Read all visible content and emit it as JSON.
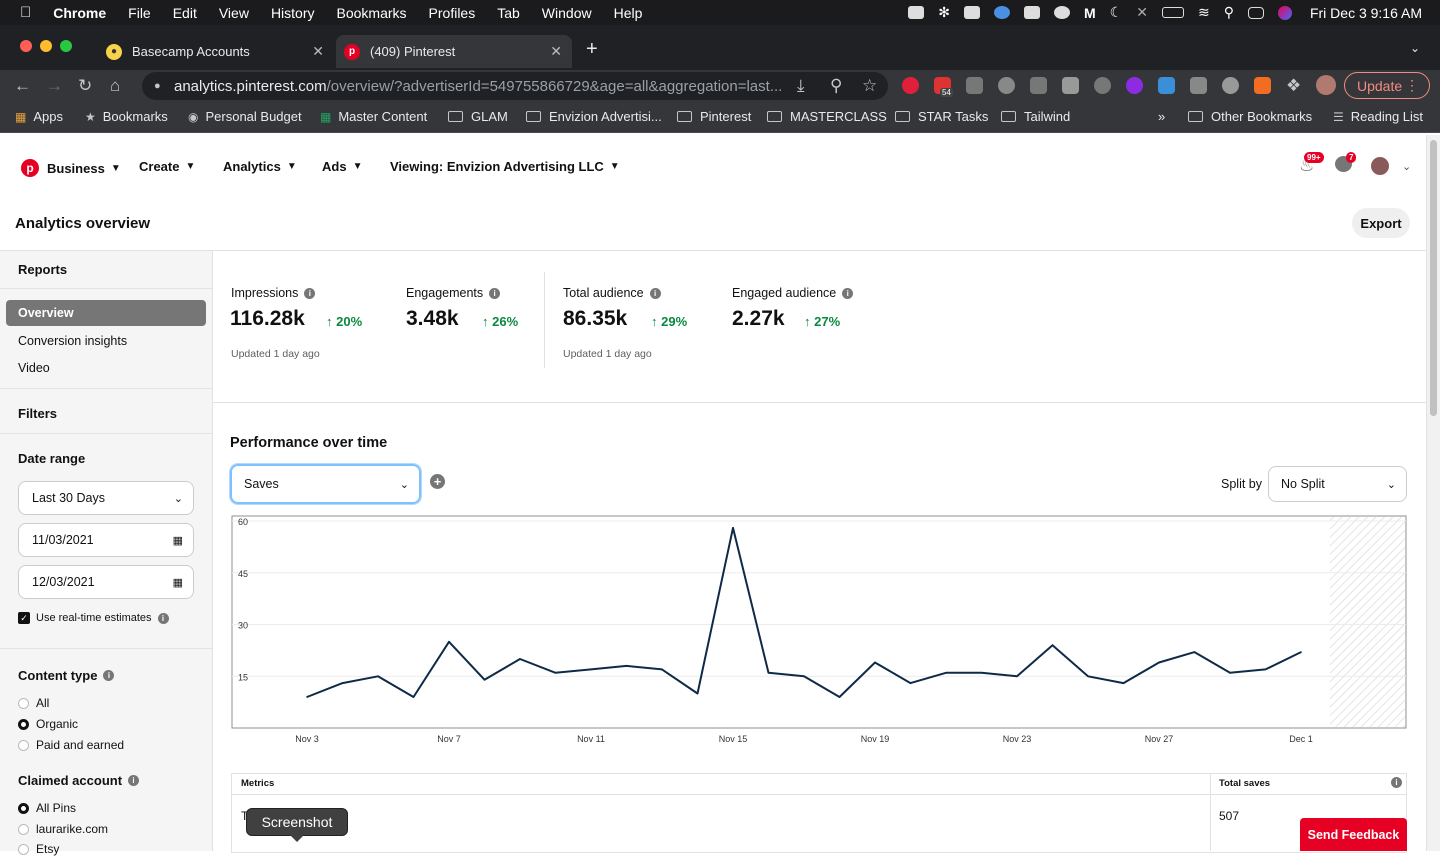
{
  "mac_menu": {
    "app": "Chrome",
    "items": [
      "File",
      "Edit",
      "View",
      "History",
      "Bookmarks",
      "Profiles",
      "Tab",
      "Window",
      "Help"
    ],
    "clock": "Fri Dec 3  9:16 AM"
  },
  "tabs": [
    {
      "title": "Basecamp Accounts",
      "active": false
    },
    {
      "title": "(409) Pinterest",
      "active": true
    }
  ],
  "address_bar": {
    "host": "analytics.pinterest.com",
    "path": "/overview/?advertiserId=549755866729&age=all&aggregation=last..."
  },
  "update_button": "Update",
  "extension_badge": "54",
  "bookmarks": [
    "Apps",
    "Bookmarks",
    "Personal Budget",
    "Master Content",
    "GLAM",
    "Envizion Advertisi...",
    "Pinterest",
    "MASTERCLASS",
    "STAR Tasks",
    "Tailwind"
  ],
  "bookmarks_overflow": "»",
  "other_bookmarks": "Other Bookmarks",
  "reading_list": "Reading List",
  "pinterest_nav": {
    "business": "Business",
    "create": "Create",
    "analytics": "Analytics",
    "ads": "Ads",
    "viewing": "Viewing: Envizion Advertising LLC",
    "notifications_badge": "99+",
    "messages_badge": "7"
  },
  "page": {
    "title": "Analytics overview",
    "export": "Export"
  },
  "sidebar": {
    "reports_heading": "Reports",
    "reports": [
      "Overview",
      "Conversion insights",
      "Video"
    ],
    "filters_heading": "Filters",
    "date_range_heading": "Date range",
    "date_range_value": "Last 30 Days",
    "start_date": "11/03/2021",
    "end_date": "12/03/2021",
    "realtime_label": "Use real-time estimates",
    "content_type_heading": "Content type",
    "content_types": [
      "All",
      "Organic",
      "Paid and earned"
    ],
    "content_type_selected": "Organic",
    "claimed_heading": "Claimed account",
    "claimed_accounts": [
      "All Pins",
      "laurarike.com",
      "Etsy"
    ],
    "claimed_selected": "All Pins"
  },
  "metrics": [
    {
      "label": "Impressions",
      "value": "116.28k",
      "change": "20%"
    },
    {
      "label": "Engagements",
      "value": "3.48k",
      "change": "26%"
    },
    {
      "label": "Total audience",
      "value": "86.35k",
      "change": "29%"
    },
    {
      "label": "Engaged audience",
      "value": "2.27k",
      "change": "27%"
    }
  ],
  "updated_text": "Updated 1 day ago",
  "performance": {
    "title": "Performance over time",
    "metric_select": "Saves",
    "split_label": "Split by",
    "split_value": "No Split"
  },
  "chart_data": {
    "type": "line",
    "x": [
      "Nov 3",
      "Nov 4",
      "Nov 5",
      "Nov 6",
      "Nov 7",
      "Nov 8",
      "Nov 9",
      "Nov 10",
      "Nov 11",
      "Nov 12",
      "Nov 13",
      "Nov 14",
      "Nov 15",
      "Nov 16",
      "Nov 17",
      "Nov 18",
      "Nov 19",
      "Nov 20",
      "Nov 21",
      "Nov 22",
      "Nov 23",
      "Nov 24",
      "Nov 25",
      "Nov 26",
      "Nov 27",
      "Nov 28",
      "Nov 29",
      "Nov 30",
      "Dec 1"
    ],
    "tick_labels": [
      "Nov 3",
      "Nov 7",
      "Nov 11",
      "Nov 15",
      "Nov 19",
      "Nov 23",
      "Nov 27",
      "Dec 1"
    ],
    "series": [
      {
        "values": [
          9,
          13,
          15,
          9,
          25,
          14,
          20,
          16,
          17,
          18,
          17,
          10,
          58,
          16,
          15,
          9,
          19,
          13,
          16,
          16,
          15,
          24,
          15,
          13,
          19,
          22,
          16,
          17,
          22
        ]
      }
    ],
    "yticks": [
      15,
      30,
      45,
      60
    ],
    "ylim": [
      0,
      60
    ],
    "color": "#0e2a47",
    "grid": true
  },
  "table": {
    "col_metrics": "Metrics",
    "col_total": "Total saves",
    "row_value": "507",
    "row_label_partial": "T"
  },
  "tooltip": "Screenshot",
  "feedback": "Send Feedback"
}
